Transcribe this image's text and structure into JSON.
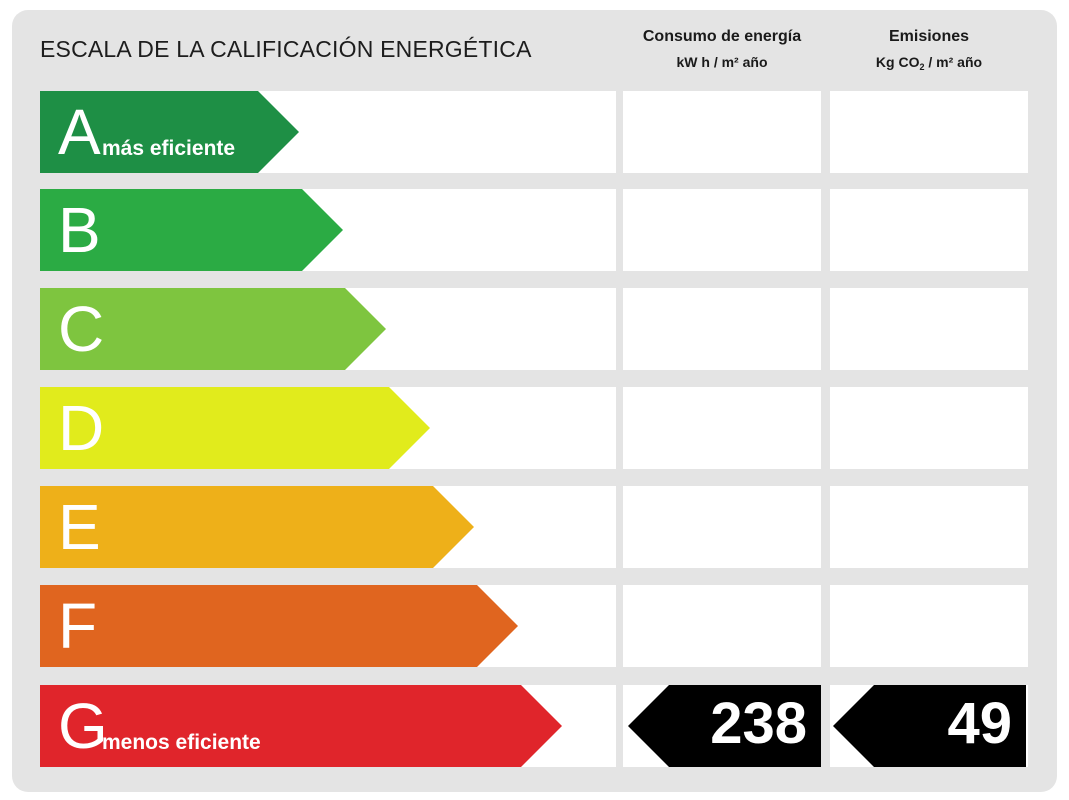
{
  "scale_title": "ESCALA DE LA CALIFICACIÓN ENERGÉTICA",
  "columns": {
    "consumption": {
      "title": "Consumo de energía",
      "unit": "kW h / m² año"
    },
    "emissions": {
      "title": "Emisiones",
      "unit_prefix": "Kg CO",
      "unit_sub": "2",
      "unit_suffix": " / m² año"
    }
  },
  "ratings": [
    {
      "letter": "A",
      "caption": "más eficiente",
      "color": "#1e8f45"
    },
    {
      "letter": "B",
      "caption": "",
      "color": "#2bab44"
    },
    {
      "letter": "C",
      "caption": "",
      "color": "#7ec53f"
    },
    {
      "letter": "D",
      "caption": "",
      "color": "#e1eb1c"
    },
    {
      "letter": "E",
      "caption": "",
      "color": "#eeb019"
    },
    {
      "letter": "F",
      "caption": "",
      "color": "#e0651f"
    },
    {
      "letter": "G",
      "caption": "menos eficiente",
      "color": "#e0252b"
    }
  ],
  "result": {
    "rating": "G",
    "consumption_value": "238",
    "emissions_value": "49"
  }
}
